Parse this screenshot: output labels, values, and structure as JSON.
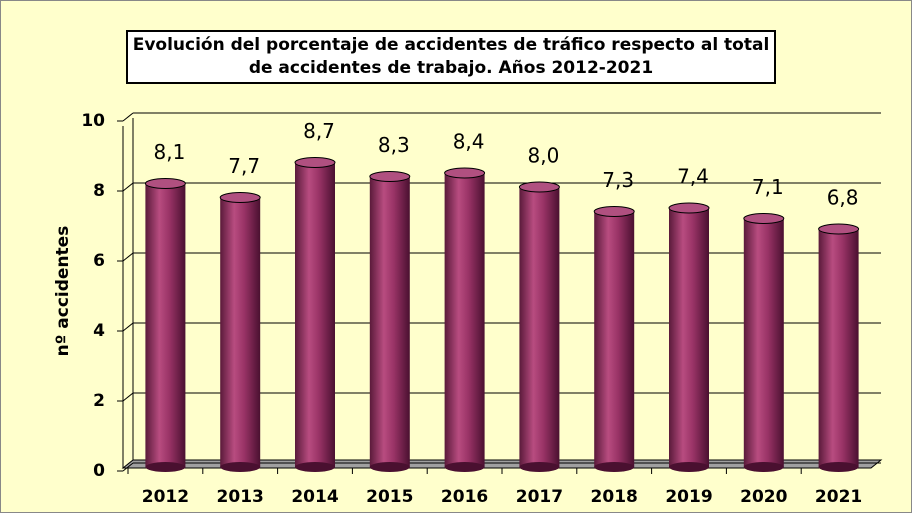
{
  "chart_data": {
    "type": "bar",
    "title": "Evolución del porcentaje de accidentes de tráfico respecto al total de accidentes de trabajo. Años 2012-2021",
    "y_label": "nº accidentes",
    "categories": [
      "2012",
      "2013",
      "2014",
      "2015",
      "2016",
      "2017",
      "2018",
      "2019",
      "2020",
      "2021"
    ],
    "values": [
      8.1,
      7.7,
      8.7,
      8.3,
      8.4,
      8.0,
      7.3,
      7.4,
      7.1,
      6.8
    ],
    "value_labels": [
      "8,1",
      "7,7",
      "8,7",
      "8,3",
      "8,4",
      "8,0",
      "7,3",
      "7,4",
      "7,1",
      "6,8"
    ],
    "color": "#993366",
    "ylim": [
      0,
      10
    ],
    "yticks": [
      0,
      2,
      4,
      6,
      8,
      10
    ],
    "grid": true
  }
}
